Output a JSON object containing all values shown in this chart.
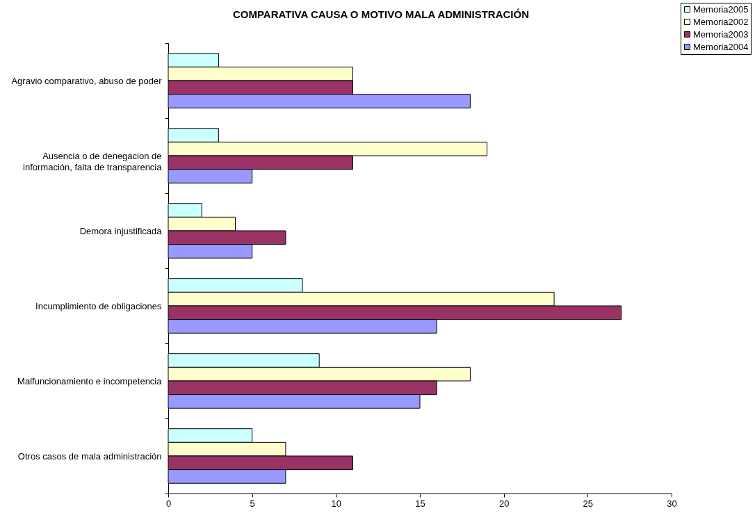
{
  "chart_data": {
    "type": "bar",
    "orientation": "horizontal",
    "title": "COMPARATIVA CAUSA O MOTIVO MALA ADMINISTRACIÓN",
    "categories": [
      "Agravio comparativo, abuso de poder",
      "Ausencia o de denegacion de información, falta de transparencia",
      "Demora injustificada",
      "Incumplimiento de obligaciones",
      "Malfuncionamiento e incompetencia",
      "Otros casos de mala administración"
    ],
    "series": [
      {
        "name": "Memoria2005",
        "color": "#ccffff",
        "values": [
          3,
          3,
          2,
          8,
          9,
          5
        ]
      },
      {
        "name": "Memoria2002",
        "color": "#ffffcc",
        "values": [
          11,
          19,
          4,
          23,
          18,
          7
        ]
      },
      {
        "name": "Memoria2003",
        "color": "#993366",
        "values": [
          11,
          11,
          7,
          27,
          16,
          11
        ]
      },
      {
        "name": "Memoria2004",
        "color": "#9999ff",
        "values": [
          18,
          5,
          5,
          16,
          15,
          7
        ]
      }
    ],
    "xlim": [
      0,
      30
    ],
    "xticks": [
      0,
      5,
      10,
      15,
      20,
      25,
      30
    ],
    "grid": false,
    "legend": "top right"
  }
}
